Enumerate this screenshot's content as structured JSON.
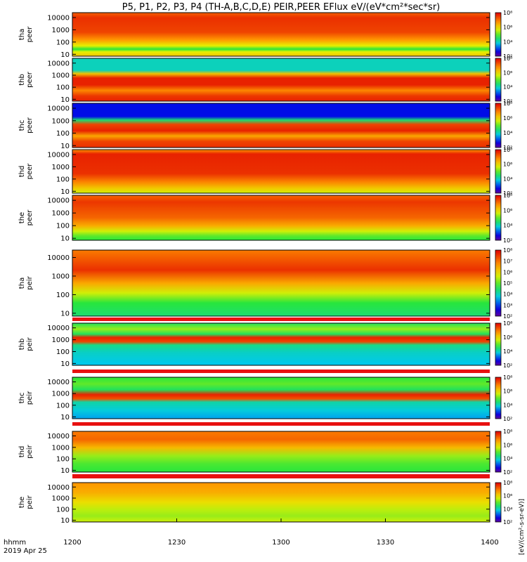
{
  "title": "P5, P1, P2, P3, P4 (TH-A,B,C,D,E) PEIR,PEER EFlux eV/(eV*cm²*sec*sr)",
  "time_axis": {
    "label_line1": "hhmm",
    "label_line2": "2019 Apr 25",
    "ticks": [
      "1200",
      "1230",
      "1300",
      "1330",
      "1400"
    ]
  },
  "colorbar": {
    "tick_labels": [
      "10²",
      "10³",
      "10⁴",
      "10⁵",
      "10⁶",
      "10⁷",
      "10⁸"
    ],
    "units": "[eV/(cm²-s-sr-eV)]"
  },
  "colors": {
    "background": "#ffffff",
    "gap_band": "#e81010",
    "fill_band": "#ffcc00"
  },
  "chart_data": {
    "type": "heatmap",
    "title": "P5, P1, P2, P3, P4 (TH-A,B,C,D,E) PEIR,PEER EFlux eV/(eV*cm²*sec*sr)",
    "x": {
      "unit": "hhmm",
      "range": [
        "1200",
        "1400"
      ],
      "date": "2019 Apr 25",
      "ticks": [
        "1200",
        "1230",
        "1300",
        "1330",
        "1400"
      ]
    },
    "y_scale": "log",
    "y_range": [
      7,
      25000
    ],
    "y_ticks": [
      "10",
      "100",
      "1000",
      "10000"
    ],
    "z_scale": "log",
    "z_range": [
      100,
      100000000
    ],
    "panels": [
      {
        "label": "tha peer",
        "species": "electron",
        "description": "high flux above ~200 eV, green/blue band near 20-60 eV"
      },
      {
        "label": "thb peer",
        "species": "electron",
        "description": "red band ~100-2000 eV, blue/cyan above ~3000 eV"
      },
      {
        "label": "thc peer",
        "species": "electron",
        "description": "red band ~100-1500 eV, dark blue noise above ~2000 eV"
      },
      {
        "label": "thd peer",
        "species": "electron",
        "description": "broad red flux 30-10000 eV"
      },
      {
        "label": "the peer",
        "species": "electron",
        "description": "red/orange above ~200 eV, green below ~30 eV"
      },
      {
        "label": "tha peir",
        "species": "ion",
        "description": "red above ~500 eV, black speckle below ~30 eV"
      },
      {
        "label": "thb peir",
        "species": "ion",
        "description": "narrow red band near ~1000 eV, cyan/blue elsewhere"
      },
      {
        "label": "thc peir",
        "species": "ion",
        "description": "red band near ~1000 eV, cyan/blue elsewhere"
      },
      {
        "label": "thd peir",
        "species": "ion",
        "description": "orange/red above ~1000 eV, green below"
      },
      {
        "label": "the peir",
        "species": "ion",
        "description": "orange above ~1000 eV, yellow/green below"
      }
    ]
  }
}
